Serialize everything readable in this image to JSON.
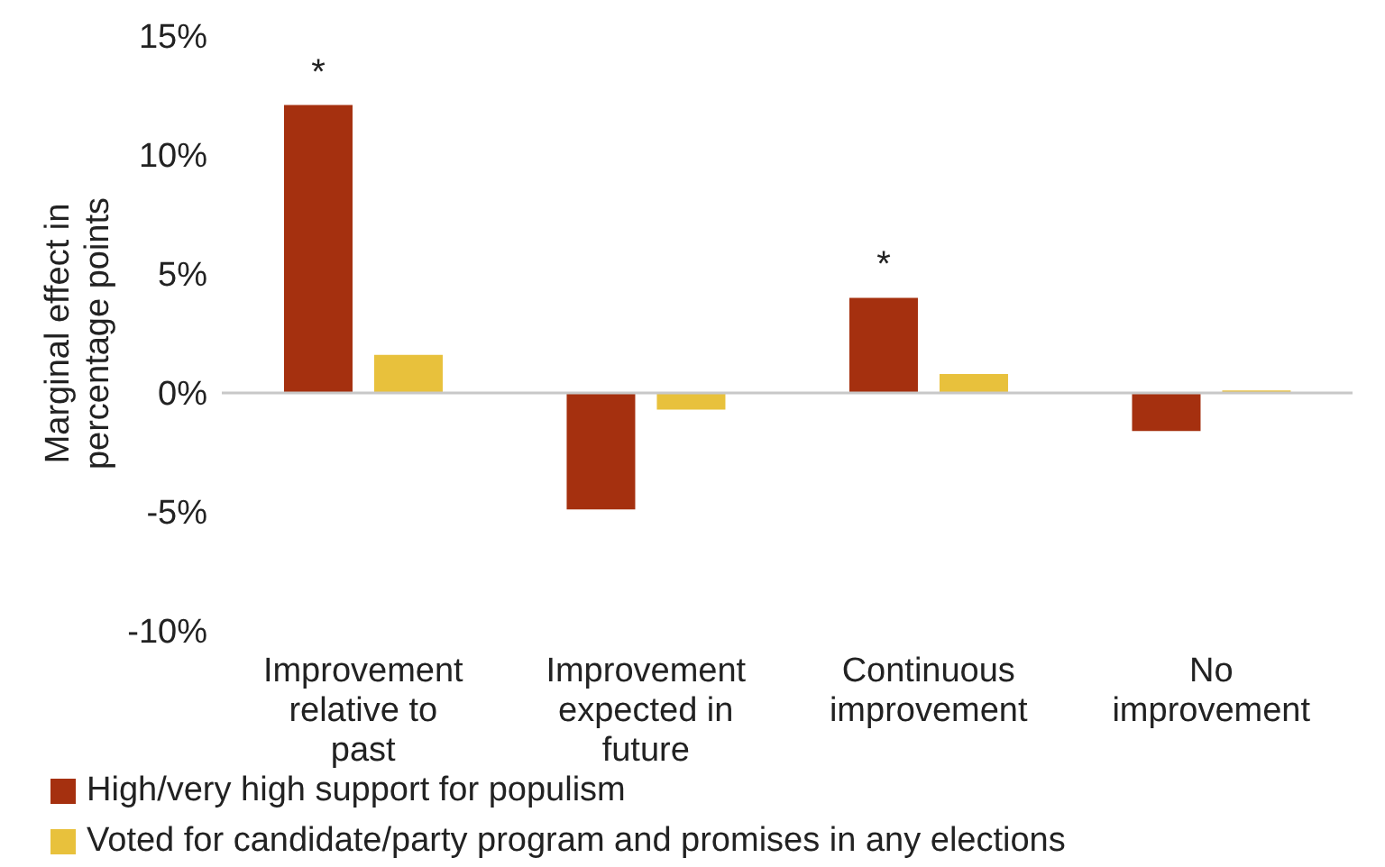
{
  "chart_data": {
    "type": "bar",
    "ylabel": "Marginal effect in percentage points",
    "categories": [
      "Improvement relative to past",
      "Improvement expected in future",
      "Continuous improvement",
      "No improvement"
    ],
    "series": [
      {
        "name": "High/very high support for populism",
        "color": "#a5300f",
        "values": [
          12.1,
          -4.9,
          4.0,
          -1.6
        ],
        "value_labels": [
          "*",
          null,
          "*",
          null
        ]
      },
      {
        "name": "Voted for candidate/party program and promises in any elections",
        "color": "#e8c13c",
        "values": [
          1.6,
          -0.7,
          0.8,
          0.1
        ]
      }
    ],
    "ylim": [
      -10,
      15
    ],
    "yticks": [
      {
        "value": -10,
        "label": "-10%"
      },
      {
        "value": -5,
        "label": "-5%"
      },
      {
        "value": 0,
        "label": "0%"
      },
      {
        "value": 5,
        "label": "5%"
      },
      {
        "value": 10,
        "label": "10%"
      },
      {
        "value": 15,
        "label": "15%"
      }
    ],
    "ref_lines": [
      {
        "axis": "y",
        "value": 0,
        "color": "#c8c8c8"
      }
    ],
    "grid": false,
    "legend": "bottom"
  }
}
